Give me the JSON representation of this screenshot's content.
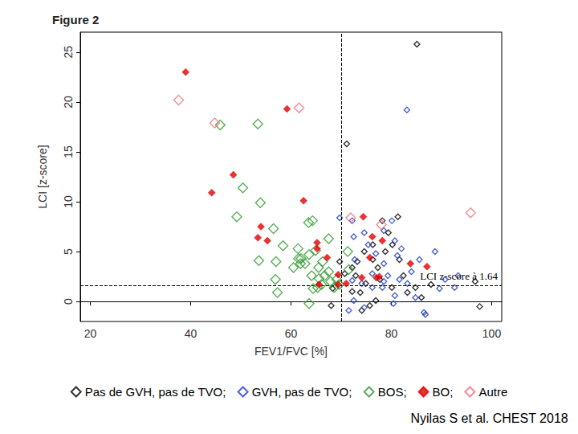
{
  "chart_data": {
    "type": "scatter",
    "title": "Figure 2",
    "x_label": "FEV1/FVC [%]",
    "y_label": "LCI [z-score]",
    "xlim": [
      18,
      102
    ],
    "xticks": [
      20,
      40,
      60,
      80,
      100
    ],
    "ylim": [
      -2,
      27
    ],
    "yticks": [
      0,
      5,
      10,
      15,
      20,
      25
    ],
    "grid": false,
    "legend": "bottom",
    "vlines": [
      70
    ],
    "hlines": [
      {
        "value": 1.64,
        "label": "LCI z-score à 1.64"
      }
    ],
    "source": "Nyilas S et al. CHEST 2018",
    "series": [
      {
        "name": "Pas de GVH, pas de TVO;",
        "color": "#000000",
        "marker": "diamond-open",
        "x": [
          85.1,
          71.1,
          69.7,
          68.3,
          68.0,
          72.2,
          72.9,
          73.8,
          74.1,
          75.7,
          76.9,
          74.9,
          77.3,
          78.8,
          79.4,
          80.2,
          81.6,
          82.4,
          83.2,
          84.8,
          86.0,
          87.9,
          96.7,
          97.6,
          70.7,
          73.2,
          77.7,
          80.1,
          74.6,
          76.3,
          81.3,
          72.2,
          78.2,
          76.3
        ],
        "values": [
          25.8,
          15.8,
          4.0,
          1.3,
          -0.4,
          3.4,
          2.6,
          0.9,
          -0.9,
          -0.4,
          0.1,
          1.8,
          3.4,
          5.0,
          6.9,
          5.7,
          4.2,
          2.6,
          0.9,
          1.4,
          0.4,
          1.7,
          2.0,
          -0.5,
          2.8,
          4.0,
          2.2,
          1.4,
          5.0,
          5.7,
          8.5,
          1.0,
          8.1,
          4.2
        ]
      },
      {
        "name": "GVH, pas de TVO;",
        "color": "#1f3fbf",
        "marker": "diamond-open",
        "x": [
          83.1,
          69.7,
          72.2,
          72.5,
          75.4,
          78.5,
          80.7,
          81.2,
          78.5,
          76.9,
          79.3,
          81.6,
          84.0,
          85.6,
          88.7,
          90.7,
          93.3,
          92.6,
          86.5,
          86.8,
          80.4,
          80.7,
          76.2,
          72.5,
          71.5,
          74.6,
          83.2,
          84.8,
          74.1,
          76.2,
          72.2,
          78.2,
          82.0,
          74.6,
          80.1,
          78.5,
          89.6,
          72.7
        ],
        "values": [
          19.2,
          8.4,
          8.1,
          6.5,
          5.7,
          7.1,
          6.1,
          4.6,
          3.8,
          4.8,
          2.6,
          2.2,
          3.0,
          4.2,
          5.0,
          2.2,
          2.6,
          1.4,
          -1.1,
          -1.3,
          -0.2,
          0.6,
          1.4,
          0.1,
          -0.9,
          -0.6,
          1.8,
          0.4,
          1.8,
          2.8,
          2.1,
          1.4,
          5.3,
          6.9,
          8.1,
          2.0,
          1.3,
          4.2
        ]
      },
      {
        "name": "BOS;",
        "color": "#2e9b2e",
        "marker": "diamond-open",
        "x": [
          45.9,
          53.4,
          50.4,
          53.9,
          49.2,
          56.5,
          63.5,
          64.3,
          58.4,
          61.4,
          53.6,
          57.0,
          61.5,
          62.0,
          61.9,
          63.6,
          64.9,
          67.5,
          71.3,
          56.9,
          57.3,
          63.6,
          64.4,
          64.1,
          65.6,
          66.1,
          66.7,
          67.9,
          67.5,
          69.1,
          69.6,
          62.8,
          65.5,
          66.3,
          60.5,
          68.6,
          65.3,
          71.5
        ],
        "values": [
          17.7,
          17.8,
          11.4,
          9.9,
          8.5,
          7.3,
          7.9,
          8.1,
          5.6,
          5.3,
          4.1,
          4.0,
          4.3,
          4.3,
          3.8,
          4.7,
          5.1,
          6.3,
          5.0,
          2.2,
          0.9,
          -0.2,
          1.3,
          2.6,
          2.3,
          1.7,
          2.6,
          2.0,
          3.0,
          2.2,
          1.7,
          3.8,
          3.4,
          4.0,
          3.4,
          1.4,
          1.4,
          3.2
        ]
      },
      {
        "name": "BO;",
        "color": "#e00000",
        "marker": "diamond",
        "x": [
          39.0,
          59.2,
          48.5,
          44.2,
          62.5,
          54.0,
          53.4,
          55.3,
          65.2,
          65.2,
          67.2,
          65.6,
          69.4,
          69.4,
          74.4,
          76.2,
          78.2,
          75.7,
          77.0,
          77.6,
          74.1,
          83.8,
          87.1,
          71.0
        ],
        "values": [
          23.0,
          19.3,
          12.7,
          10.9,
          10.1,
          7.5,
          6.4,
          6.1,
          5.9,
          5.3,
          4.4,
          1.7,
          2.7,
          1.7,
          8.5,
          6.5,
          6.1,
          4.4,
          2.4,
          2.5,
          2.4,
          3.8,
          3.5,
          1.8
        ]
      },
      {
        "name": "Autre",
        "color": "#e8707a",
        "marker": "diamond-open",
        "x": [
          37.6,
          44.8,
          61.6,
          71.9,
          78.0,
          95.8
        ],
        "values": [
          20.2,
          17.9,
          19.4,
          8.4,
          7.7,
          8.9
        ]
      }
    ]
  }
}
